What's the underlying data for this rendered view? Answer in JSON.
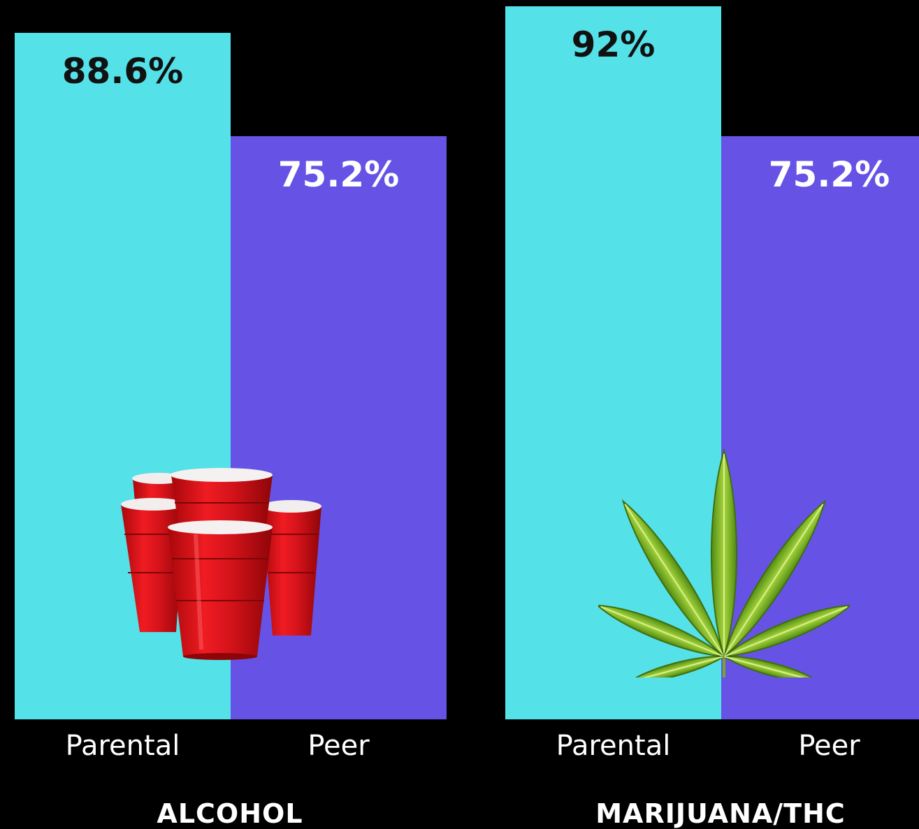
{
  "colors": {
    "background": "#000000",
    "parental_bar": "#55e1e8",
    "peer_bar": "#6653e6",
    "parental_label": "#111111",
    "peer_label": "#ffffff"
  },
  "chart_data": [
    {
      "type": "bar",
      "title": "ALCOHOL",
      "categories": [
        "Parental",
        "Peer"
      ],
      "values": [
        88.6,
        75.2
      ],
      "value_labels": [
        "88.6%",
        "75.2%"
      ],
      "ylim": [
        0,
        100
      ],
      "illustration": "red-party-cups-icon"
    },
    {
      "type": "bar",
      "title": "MARIJUANA/THC",
      "categories": [
        "Parental",
        "Peer"
      ],
      "values": [
        92,
        75.2
      ],
      "value_labels": [
        "92%",
        "75.2%"
      ],
      "ylim": [
        0,
        100
      ],
      "illustration": "cannabis-leaf-icon"
    }
  ]
}
